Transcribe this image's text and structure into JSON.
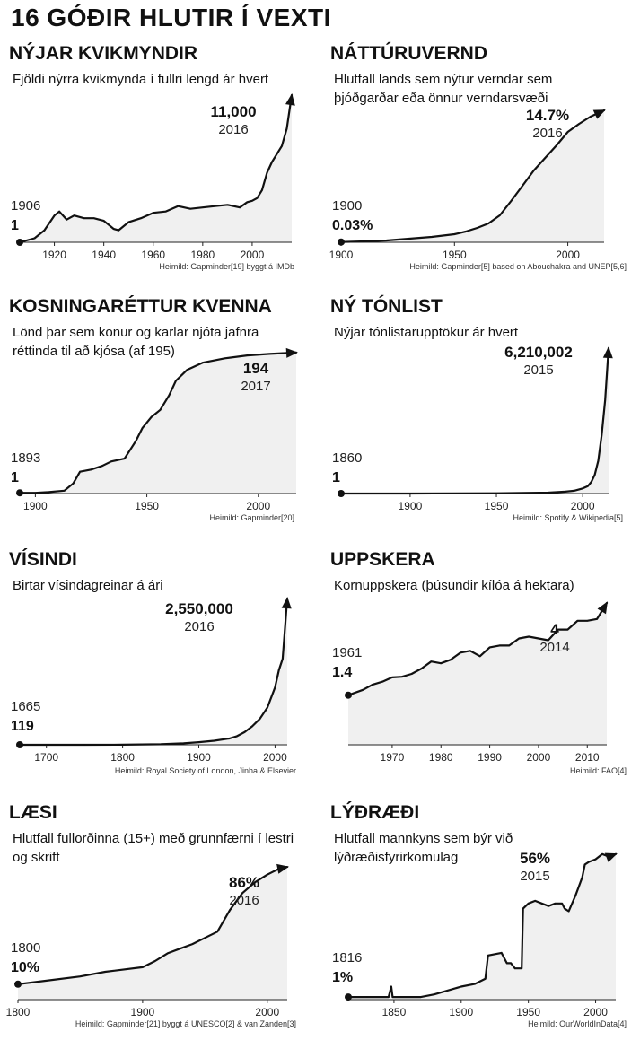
{
  "title": "16 GÓÐIR HLUTIR Í VEXTI",
  "chart_data": [
    {
      "type": "area",
      "title": "NÝJAR KVIKMYNDIR",
      "subtitle": "Fjöldi nýrra kvikmynda í fullri lengd ár hvert",
      "start_year": "1906",
      "start_value": "1",
      "end_year": "2016",
      "end_value": "11,000",
      "source": "Heimild: Gapminder[19] byggt á IMDb",
      "x_ticks": [
        1920,
        1940,
        1960,
        1980,
        2000
      ],
      "xlim": [
        1906,
        2016
      ],
      "ylim": [
        0,
        11000
      ],
      "x": [
        1906,
        1912,
        1916,
        1920,
        1922,
        1925,
        1928,
        1932,
        1936,
        1940,
        1944,
        1946,
        1950,
        1955,
        1960,
        1965,
        1970,
        1975,
        1980,
        1985,
        1990,
        1995,
        1998,
        2000,
        2002,
        2004,
        2006,
        2008,
        2010,
        2012,
        2014,
        2016
      ],
      "y": [
        1,
        300,
        900,
        2000,
        2300,
        1700,
        2000,
        1800,
        1800,
        1600,
        1000,
        900,
        1500,
        1800,
        2200,
        2300,
        2700,
        2500,
        2600,
        2700,
        2800,
        2600,
        3000,
        3100,
        3300,
        3900,
        5200,
        6000,
        6600,
        7200,
        8500,
        11000
      ]
    },
    {
      "type": "area",
      "title": "NÁTTÚRUVERND",
      "subtitle": "Hlutfall lands sem nýtur verndar sem þjóðgarðar eða önnur verndarsvæði",
      "start_year": "1900",
      "start_value": "0.03%",
      "end_year": "2016",
      "end_value": "14.7%",
      "source": "Heimild: Gapminder[5] based on Abouchakra and UNEP[5,6]",
      "x_ticks": [
        1900,
        1950,
        2000
      ],
      "xlim": [
        1900,
        2016
      ],
      "ylim": [
        0,
        14.7
      ],
      "x": [
        1900,
        1910,
        1920,
        1930,
        1940,
        1950,
        1955,
        1960,
        1965,
        1970,
        1975,
        1980,
        1985,
        1990,
        1995,
        2000,
        2005,
        2010,
        2016
      ],
      "y": [
        0.03,
        0.1,
        0.2,
        0.4,
        0.6,
        0.9,
        1.2,
        1.6,
        2.1,
        3,
        4.6,
        6.3,
        8,
        9.4,
        10.8,
        12.3,
        13.2,
        14,
        14.7
      ]
    },
    {
      "type": "area",
      "title": "KOSNINGARÉTTUR KVENNA",
      "subtitle": "Lönd þar sem konur og karlar njóta jafnra réttinda til að kjósa (af 195)",
      "start_year": "1893",
      "start_value": "1",
      "end_year": "2017",
      "end_value": "194",
      "source": "Heimild: Gapminder[20]",
      "x_ticks": [
        1900,
        1950,
        2000
      ],
      "xlim": [
        1893,
        2017
      ],
      "ylim": [
        0,
        195
      ],
      "x": [
        1893,
        1900,
        1906,
        1913,
        1917,
        1920,
        1925,
        1930,
        1934,
        1940,
        1945,
        1948,
        1952,
        1956,
        1960,
        1963,
        1968,
        1975,
        1985,
        1995,
        2005,
        2017
      ],
      "y": [
        1,
        1,
        2,
        4,
        14,
        30,
        33,
        38,
        44,
        48,
        72,
        90,
        105,
        115,
        135,
        155,
        170,
        180,
        186,
        190,
        192,
        194
      ]
    },
    {
      "type": "area",
      "title": "NÝ TÓNLIST",
      "subtitle": "Nýjar tónlistarupptökur ár hvert",
      "start_year": "1860",
      "start_value": "1",
      "end_year": "2015",
      "end_value": "6,210,002",
      "source": "Heimild: Spotify & Wikipedia[5]",
      "x_ticks": [
        1900,
        1950,
        2000
      ],
      "xlim": [
        1860,
        2015
      ],
      "ylim": [
        0,
        6210002
      ],
      "x": [
        1860,
        1900,
        1950,
        1980,
        1990,
        1995,
        2000,
        2003,
        2005,
        2007,
        2009,
        2011,
        2013,
        2015
      ],
      "y": [
        1,
        1000,
        10000,
        40000,
        80000,
        120000,
        220000,
        320000,
        500000,
        800000,
        1400000,
        2500000,
        4000000,
        6210002
      ]
    },
    {
      "type": "area",
      "title": "VÍSINDI",
      "subtitle": "Birtar vísindagreinar á ári",
      "start_year": "1665",
      "start_value": "119",
      "end_year": "2016",
      "end_value": "2,550,000",
      "source": "Heimild: Royal Society of London, Jinha & Elsevier",
      "x_ticks": [
        1700,
        1800,
        1900,
        2000
      ],
      "xlim": [
        1665,
        2016
      ],
      "ylim": [
        0,
        2550000
      ],
      "x": [
        1665,
        1750,
        1800,
        1850,
        1880,
        1900,
        1920,
        1940,
        1950,
        1960,
        1970,
        1980,
        1990,
        2000,
        2005,
        2010,
        2016
      ],
      "y": [
        119,
        500,
        2000,
        10000,
        25000,
        45000,
        70000,
        110000,
        150000,
        220000,
        320000,
        450000,
        650000,
        1000000,
        1300000,
        1500000,
        2550000
      ]
    },
    {
      "type": "area",
      "title": "UPPSKERA",
      "subtitle": "Kornuppskera (þúsundir kílóa á hektara)",
      "start_year": "1961",
      "start_value": "1.4",
      "end_year": "2014",
      "end_value": "4",
      "source": "Heimild: FAO[4]",
      "x_ticks": [
        1970,
        1980,
        1990,
        2000,
        2010
      ],
      "xlim": [
        1961,
        2014
      ],
      "ylim": [
        0,
        4
      ],
      "x": [
        1961,
        1964,
        1966,
        1968,
        1970,
        1972,
        1974,
        1976,
        1978,
        1980,
        1982,
        1984,
        1986,
        1988,
        1990,
        1992,
        1994,
        1996,
        1998,
        2000,
        2002,
        2004,
        2006,
        2008,
        2010,
        2012,
        2014
      ],
      "y": [
        1.4,
        1.55,
        1.7,
        1.78,
        1.9,
        1.92,
        2.0,
        2.15,
        2.35,
        2.3,
        2.4,
        2.6,
        2.65,
        2.5,
        2.75,
        2.8,
        2.8,
        3.0,
        3.05,
        3.0,
        2.95,
        3.25,
        3.25,
        3.5,
        3.5,
        3.55,
        4.0
      ]
    },
    {
      "type": "area",
      "title": "LÆSI",
      "subtitle": "Hlutfall fullorðinna (15+) með grunnfærni í lestri og skrift",
      "start_year": "1800",
      "start_value": "10%",
      "end_year": "2016",
      "end_value": "86%",
      "source": "Heimild: Gapminder[21] byggt á UNESCO[2] & van Zanden[3]",
      "x_ticks": [
        1800,
        1900,
        2000
      ],
      "xlim": [
        1800,
        2016
      ],
      "ylim": [
        0,
        100
      ],
      "x": [
        1800,
        1820,
        1850,
        1870,
        1900,
        1910,
        1920,
        1930,
        1940,
        1950,
        1960,
        1970,
        1980,
        1990,
        2000,
        2005,
        2010,
        2016
      ],
      "y": [
        10,
        12,
        15,
        18,
        21,
        25,
        30,
        33,
        36,
        40,
        44,
        58,
        69,
        76,
        81,
        83,
        85,
        86
      ]
    },
    {
      "type": "area",
      "title": "LÝÐRÆÐI",
      "subtitle": "Hlutfall mannkyns sem býr við lýðræðisfyrirkomulag",
      "start_year": "1816",
      "start_value": "1%",
      "end_year": "2015",
      "end_value": "56%",
      "source": "Heimild: OurWorldInData[4]",
      "x_ticks": [
        1850,
        1900,
        1950,
        2000
      ],
      "xlim": [
        1816,
        2015
      ],
      "ylim": [
        0,
        58
      ],
      "x": [
        1816,
        1830,
        1846,
        1848,
        1849,
        1870,
        1880,
        1900,
        1910,
        1918,
        1920,
        1930,
        1934,
        1937,
        1940,
        1945,
        1946,
        1950,
        1955,
        1960,
        1965,
        1970,
        1975,
        1977,
        1980,
        1985,
        1990,
        1992,
        1995,
        2000,
        2005,
        2010,
        2015
      ],
      "y": [
        1,
        1,
        1,
        5,
        1,
        1,
        2,
        5,
        6,
        8,
        17,
        18,
        14,
        14,
        12,
        12,
        35,
        37,
        38,
        37,
        36,
        37,
        37,
        35,
        34,
        40,
        47,
        52,
        53,
        54,
        56,
        55,
        56
      ]
    }
  ]
}
